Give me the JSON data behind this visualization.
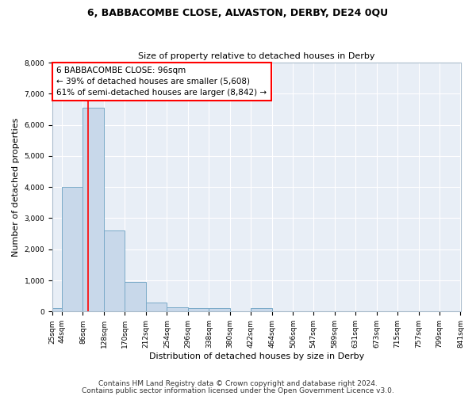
{
  "title": "6, BABBACOMBE CLOSE, ALVASTON, DERBY, DE24 0QU",
  "subtitle": "Size of property relative to detached houses in Derby",
  "xlabel": "Distribution of detached houses by size in Derby",
  "ylabel": "Number of detached properties",
  "bar_color": "#c8d8ea",
  "bar_edge_color": "#7aaac8",
  "background_color": "#e8eef6",
  "grid_color": "#ffffff",
  "fig_background": "#ffffff",
  "red_line_x": 96,
  "annotation_text": "6 BABBACOMBE CLOSE: 96sqm\n← 39% of detached houses are smaller (5,608)\n61% of semi-detached houses are larger (8,842) →",
  "bin_edges": [
    25,
    44,
    86,
    128,
    170,
    212,
    254,
    296,
    338,
    380,
    422,
    464,
    506,
    547,
    589,
    631,
    673,
    715,
    757,
    799,
    841
  ],
  "bar_heights": [
    100,
    4000,
    6550,
    2600,
    950,
    300,
    125,
    100,
    100,
    0,
    100,
    0,
    0,
    0,
    0,
    0,
    0,
    0,
    0,
    0
  ],
  "ylim": [
    0,
    8000
  ],
  "yticks": [
    0,
    1000,
    2000,
    3000,
    4000,
    5000,
    6000,
    7000,
    8000
  ],
  "tick_labels": [
    "25sqm",
    "44sqm",
    "86sqm",
    "128sqm",
    "170sqm",
    "212sqm",
    "254sqm",
    "296sqm",
    "338sqm",
    "380sqm",
    "422sqm",
    "464sqm",
    "506sqm",
    "547sqm",
    "589sqm",
    "631sqm",
    "673sqm",
    "715sqm",
    "757sqm",
    "799sqm",
    "841sqm"
  ],
  "footnote1": "Contains HM Land Registry data © Crown copyright and database right 2024.",
  "footnote2": "Contains public sector information licensed under the Open Government Licence v3.0.",
  "title_fontsize": 9,
  "subtitle_fontsize": 8,
  "axis_label_fontsize": 8,
  "tick_fontsize": 6.5,
  "annot_fontsize": 7.5,
  "footnote_fontsize": 6.5
}
